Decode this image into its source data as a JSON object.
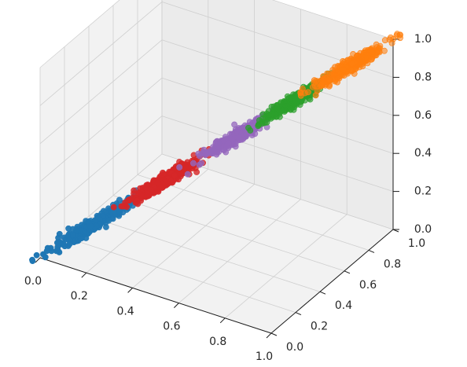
{
  "chart_data": {
    "type": "scatter",
    "title": "",
    "xlabel": "",
    "ylabel": "",
    "zlabel": "",
    "xlim": [
      0,
      1.0
    ],
    "ylim": [
      0,
      1.0
    ],
    "zlim": [
      0,
      1.0
    ],
    "xticks": [
      "0.0",
      "0.2",
      "0.4",
      "0.6",
      "0.8",
      "1.0"
    ],
    "yticks": [
      "0.0",
      "0.2",
      "0.4",
      "0.6",
      "0.8",
      "1.0"
    ],
    "zticks": [
      "0.0",
      "0.2",
      "0.4",
      "0.6",
      "0.8",
      "1.0"
    ],
    "grid": true,
    "legend": false,
    "series": [
      {
        "color": "#1f77b4",
        "center": [
          0.15,
          0.15,
          0.15
        ],
        "spread": 0.06,
        "count": 320
      },
      {
        "color": "#d62728",
        "center": [
          0.35,
          0.35,
          0.35
        ],
        "spread": 0.045,
        "count": 420
      },
      {
        "color": "#9467bd",
        "center": [
          0.55,
          0.55,
          0.55
        ],
        "spread": 0.045,
        "count": 320
      },
      {
        "color": "#2ca02c",
        "center": [
          0.72,
          0.72,
          0.72
        ],
        "spread": 0.045,
        "count": 320
      },
      {
        "color": "#ff7f0e",
        "center": [
          0.88,
          0.88,
          0.88
        ],
        "spread": 0.05,
        "count": 320
      }
    ]
  }
}
